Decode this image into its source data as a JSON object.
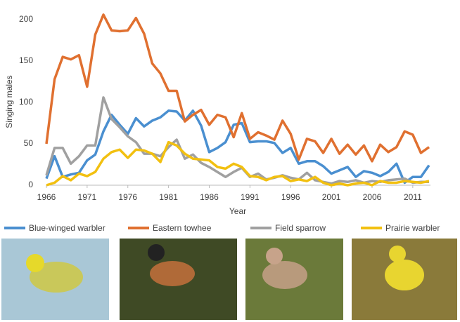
{
  "chart_data": {
    "type": "line",
    "x_label": "Year",
    "y_label": "Singing males",
    "x": [
      1966,
      1967,
      1968,
      1969,
      1970,
      1971,
      1972,
      1973,
      1974,
      1975,
      1976,
      1977,
      1978,
      1979,
      1980,
      1981,
      1982,
      1983,
      1984,
      1985,
      1986,
      1987,
      1988,
      1989,
      1990,
      1991,
      1992,
      1993,
      1994,
      1995,
      1996,
      1997,
      1998,
      1999,
      2000,
      2001,
      2002,
      2003,
      2004,
      2005,
      2006,
      2007,
      2008,
      2009,
      2010,
      2011,
      2012,
      2013
    ],
    "xlim": [
      1966,
      2013
    ],
    "xticks": [
      1966,
      1971,
      1976,
      1981,
      1986,
      1991,
      1996,
      2001,
      2006,
      2011
    ],
    "ylim": [
      0,
      210
    ],
    "yticks": [
      0,
      50,
      100,
      150,
      200
    ],
    "series": [
      {
        "name": "Blue-winged warbler",
        "color": "#4a8fd0",
        "values": [
          8,
          35,
          10,
          13,
          15,
          30,
          37,
          65,
          85,
          73,
          62,
          81,
          71,
          78,
          82,
          90,
          89,
          78,
          90,
          72,
          40,
          45,
          52,
          73,
          75,
          52,
          53,
          53,
          51,
          39,
          45,
          26,
          29,
          29,
          23,
          14,
          18,
          22,
          10,
          17,
          15,
          11,
          16,
          26,
          3,
          10,
          10,
          24
        ]
      },
      {
        "name": "Eastern towhee",
        "color": "#e07030",
        "values": [
          50,
          128,
          155,
          152,
          157,
          119,
          182,
          206,
          187,
          186,
          187,
          202,
          183,
          147,
          135,
          114,
          114,
          77,
          85,
          91,
          73,
          85,
          82,
          58,
          87,
          56,
          64,
          60,
          55,
          78,
          62,
          31,
          56,
          53,
          39,
          56,
          38,
          49,
          37,
          48,
          29,
          49,
          40,
          46,
          65,
          61,
          39,
          46
        ]
      },
      {
        "name": "Field sparrow",
        "color": "#a0a0a0",
        "values": [
          12,
          45,
          45,
          26,
          35,
          48,
          48,
          106,
          80,
          70,
          59,
          52,
          38,
          38,
          35,
          46,
          55,
          32,
          37,
          27,
          22,
          16,
          10,
          16,
          21,
          10,
          14,
          7,
          9,
          12,
          9,
          7,
          15,
          6,
          4,
          2,
          5,
          4,
          6,
          3,
          5,
          4,
          6,
          7,
          8,
          3,
          4,
          4
        ]
      },
      {
        "name": "Prairie warbler",
        "color": "#f2c010",
        "values": [
          0,
          3,
          11,
          6,
          14,
          11,
          16,
          32,
          40,
          43,
          33,
          43,
          42,
          38,
          28,
          52,
          48,
          38,
          32,
          31,
          30,
          22,
          20,
          26,
          22,
          11,
          10,
          6,
          10,
          11,
          5,
          7,
          5,
          10,
          3,
          0,
          2,
          0,
          2,
          3,
          0,
          5,
          3,
          3,
          5,
          4,
          3,
          5
        ]
      }
    ]
  }
}
